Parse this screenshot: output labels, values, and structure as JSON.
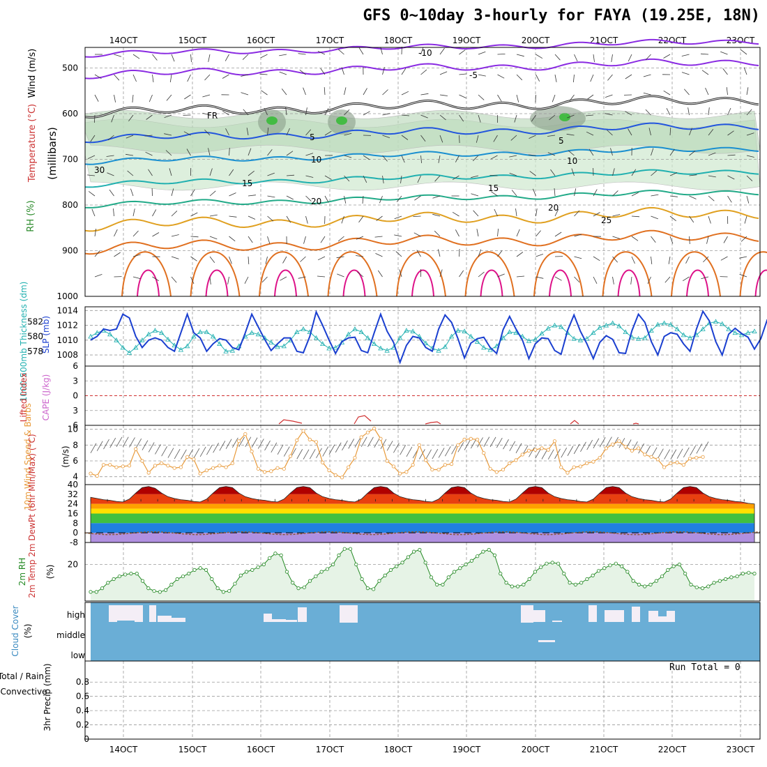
{
  "title": "GFS 0~10day 3-hourly for FAYA (19.25E, 18N)",
  "date_ticks": [
    "14OCT",
    "15OCT",
    "16OCT",
    "17OCT",
    "18OCT",
    "19OCT",
    "20OCT",
    "21OCT",
    "22OCT",
    "23OCT"
  ],
  "panels": {
    "upper": {
      "ylabel": "(millibars)",
      "label_wind": "Wind (m/s)",
      "label_temp": "Temperature (°C)",
      "label_rh": "RH (%)",
      "yticks": [
        "500",
        "600",
        "700",
        "800",
        "900",
        "1000"
      ],
      "isotherm_labels": [
        "-10",
        "-5",
        "FR",
        "5",
        "10",
        "15",
        "20",
        "25",
        "30"
      ]
    },
    "slp": {
      "label_slp": "SLP (mb)",
      "label_thick": "1000-500mb Thickness (dm)",
      "yticks_left": [
        "582",
        "580",
        "578"
      ],
      "yticks_right": [
        "1014",
        "1012",
        "1010",
        "1008"
      ]
    },
    "cape": {
      "label_li": "Lifted Index",
      "label_cape": "CAPE (J/kg)",
      "yticks": [
        "6",
        "3",
        "0",
        "3",
        "6"
      ]
    },
    "wind10": {
      "label": "10m Wind Speed & Barbs",
      "unit": "(m/s)",
      "yticks": [
        "10",
        "8",
        "6",
        "4"
      ]
    },
    "temp": {
      "label": "2m Temp 2m DewPt (6hr Min/Max) (°C)",
      "yticks": [
        "40",
        "32",
        "24",
        "16",
        "8",
        "0",
        "-8"
      ]
    },
    "rh2m": {
      "label": "2m RH",
      "unit": "(%)",
      "yticks": [
        "20"
      ]
    },
    "cloud": {
      "label": "Cloud Cover",
      "unit": "(%)",
      "levels": [
        "high",
        "middle",
        "low"
      ]
    },
    "precip": {
      "label_a": "Total / Rain",
      "label_b": "Convective",
      "label_c": "3hr Precip (mm)",
      "yticks": [
        "0.8",
        "0.6",
        "0.4",
        "0.2",
        "0"
      ],
      "run_total": "Run Total = 0"
    }
  },
  "colors": {
    "slp": "#1a3fd0",
    "thick": "#20b0b0",
    "wind": "#e89a3a",
    "rh": "#228822",
    "cloud": "#6aaed6",
    "li": "#d03030",
    "cape": "#cc66cc",
    "temp_label": "#cc3333"
  },
  "chart_data": [
    {
      "type": "line",
      "title": "Sea Level Pressure",
      "ylabel": "SLP (mb)",
      "ylim": [
        1006,
        1014
      ],
      "values": [
        1010,
        1010.5,
        1011.5,
        1011.3,
        1011.5,
        1013.5,
        1013,
        1010.5,
        1009,
        1010,
        1010.3,
        1010,
        1009,
        1008.5,
        1011,
        1013.5,
        1011,
        1010.3,
        1008.5,
        1009.5,
        1010.2,
        1010,
        1009,
        1008.7,
        1011,
        1013.5,
        1011.8,
        1010.1,
        1008.6,
        1009.5,
        1010.3,
        1010.3,
        1008.5,
        1008.3,
        1010.5,
        1013.8,
        1012,
        1010,
        1008.2,
        1009.8,
        1010.3,
        1010.4,
        1008.6,
        1008.3,
        1011,
        1013.5,
        1011.2,
        1009.7,
        1007,
        1009.3,
        1010.5,
        1010.3,
        1009,
        1008.5,
        1011.5,
        1013.4,
        1012.4,
        1010.2,
        1007.6,
        1009.6,
        1010.2,
        1010.4,
        1009,
        1008.2,
        1011.4,
        1013.2,
        1011.5,
        1010,
        1007.5,
        1009.5,
        1010.3,
        1010.2,
        1008.6,
        1008.1,
        1011.3,
        1013.4,
        1011.2,
        1009.5,
        1007.5,
        1009.7,
        1010.6,
        1010.1,
        1008.3,
        1008.2,
        1011.3,
        1013.5,
        1012.4,
        1009.8,
        1008,
        1010.5,
        1011,
        1010.8,
        1009.5,
        1008.5,
        1011.5,
        1013.9,
        1012.6,
        1009.8,
        1008,
        1010.8,
        1011.6,
        1010.9,
        1010.4,
        1008.8,
        1010.2,
        1012.8
      ]
    },
    {
      "type": "line",
      "title": "1000-500mb Thickness",
      "ylabel": "Thickness (dm)",
      "ylim": [
        576,
        584
      ],
      "values": [
        580,
        580.5,
        580.8,
        580.3,
        579.5,
        578.5,
        577.8,
        578.5,
        579.5,
        580.3,
        580.8,
        580.5,
        579.6,
        578.8,
        578.2,
        578.7,
        580,
        580.6,
        580.6,
        580,
        579,
        578,
        578.1,
        578.7,
        580,
        580.5,
        580.3,
        579.8,
        579.2,
        578.6,
        578.7,
        579.5,
        580.6,
        581,
        580.6,
        579.8,
        579,
        578.4,
        578.5,
        579.2,
        580.3,
        581,
        580.6,
        579.8,
        579,
        578.4,
        578.1,
        578.5,
        579.8,
        580.8,
        580.7,
        580,
        579.1,
        578.4,
        578.1,
        578.6,
        580,
        580.8,
        580.7,
        580,
        579.3,
        578.5,
        578.2,
        578.7,
        579.8,
        580.6,
        580.5,
        580,
        579.4,
        579.6,
        580.4,
        581.1,
        581.5,
        581.3,
        580.5,
        579.7,
        579.5,
        579.7,
        580.5,
        581.2,
        581.5,
        581.8,
        581.4,
        580.6,
        579.9,
        579.7,
        579.8,
        580.8,
        581.6,
        581.8,
        581.6,
        581,
        580.2,
        579.8,
        580.2,
        581,
        581.8,
        582,
        581.7,
        581,
        580.5,
        580.2,
        580.5,
        580.7
      ]
    },
    {
      "type": "line",
      "title": "10m Wind Speed",
      "ylabel": "(m/s)",
      "ylim": [
        3,
        10.5
      ],
      "values": [
        4.4,
        4.1,
        5.5,
        5.5,
        5.2,
        5.3,
        5.4,
        7.5,
        6,
        4.5,
        5.4,
        5.7,
        5.4,
        5.1,
        5.2,
        6.5,
        6.2,
        4.4,
        4.8,
        5.1,
        5.4,
        5.2,
        5.7,
        8.5,
        9.4,
        7.2,
        5,
        4.6,
        4.7,
        5.1,
        5,
        6.6,
        8.6,
        9.8,
        8.7,
        8.4,
        5.8,
        4.8,
        4.2,
        3.9,
        5.2,
        6.4,
        9,
        9.6,
        10.1,
        8.8,
        6,
        5.3,
        4.4,
        4.6,
        5.5,
        8,
        6.1,
        4.9,
        4.9,
        5.5,
        5.6,
        8,
        8.7,
        8.8,
        8.7,
        7,
        5,
        4.6,
        4.9,
        5.7,
        6.1,
        6.8,
        7.3,
        7.4,
        7.6,
        7.4,
        8.5,
        5.2,
        4.5,
        5.2,
        5.3,
        5.7,
        5.9,
        6.4,
        7.6,
        8.1,
        8.5,
        7.8,
        7.3,
        7.6,
        6.8,
        6.5,
        6.2,
        5.2,
        5.7,
        5.8,
        5.5,
        6.3,
        6.4,
        6.5
      ]
    },
    {
      "type": "area",
      "title": "2m Temperature",
      "ylabel": "(°C)",
      "ylim": [
        -8,
        40
      ],
      "values": [
        29.5,
        28.5,
        27.5,
        27,
        26,
        25.6,
        28,
        33,
        37.5,
        38.5,
        37,
        33,
        30,
        28.5,
        27.5,
        27,
        26,
        25.6,
        28,
        33,
        37.5,
        38.5,
        37.5,
        33,
        30,
        28.5,
        27.5,
        27,
        26,
        25.6,
        28,
        33,
        37.5,
        38.5,
        37.5,
        33,
        30,
        28.5,
        27.5,
        27,
        26,
        25.6,
        28,
        33,
        37.5,
        38.5,
        37.5,
        33,
        30,
        28.5,
        27.5,
        27,
        26,
        25.6,
        28,
        33,
        37.5,
        38.5,
        37.5,
        33,
        30,
        28.5,
        27.5,
        27,
        26,
        25.6,
        28,
        33,
        37.5,
        38.5,
        37.5,
        33,
        30,
        28.5,
        27.5,
        27,
        26,
        25.6,
        28,
        33,
        37.5,
        38.5,
        37.5,
        33,
        30,
        28.5,
        27.5,
        27,
        26,
        25.6,
        28,
        33,
        37.5,
        38.5,
        37.5,
        33,
        30,
        28.5,
        27.5,
        27,
        26,
        25.6,
        24.5,
        24
      ]
    },
    {
      "type": "line",
      "title": "2m RH",
      "ylabel": "(%)",
      "ylim": [
        0,
        32
      ],
      "values": [
        5,
        5,
        7,
        10,
        12,
        13.5,
        14.5,
        15,
        15,
        11,
        7,
        5.5,
        5,
        6,
        9,
        12,
        13.5,
        15,
        17,
        18,
        17,
        12,
        7,
        5,
        5.5,
        9.5,
        14,
        16,
        17,
        18.5,
        20,
        23.5,
        26,
        25,
        16,
        10,
        7,
        7.5,
        11,
        13.5,
        16,
        17.5,
        20,
        25,
        28.5,
        28.5,
        20,
        12,
        7,
        6.5,
        11,
        14,
        17,
        19,
        21,
        24,
        27,
        28,
        21,
        13,
        9,
        9,
        13,
        16,
        18,
        20,
        22,
        24.5,
        27,
        28,
        25,
        15,
        10,
        8,
        8,
        9,
        12,
        16,
        18.5,
        20.5,
        21,
        20.5,
        15,
        10,
        9,
        10,
        12,
        14,
        16.5,
        18,
        19.5,
        20.5,
        19,
        16,
        11,
        9,
        8,
        9,
        11,
        13.5,
        17,
        19,
        20,
        15,
        9,
        7.5,
        7,
        8,
        10,
        11,
        12,
        13,
        13.5,
        15,
        15.5,
        15
      ]
    }
  ]
}
